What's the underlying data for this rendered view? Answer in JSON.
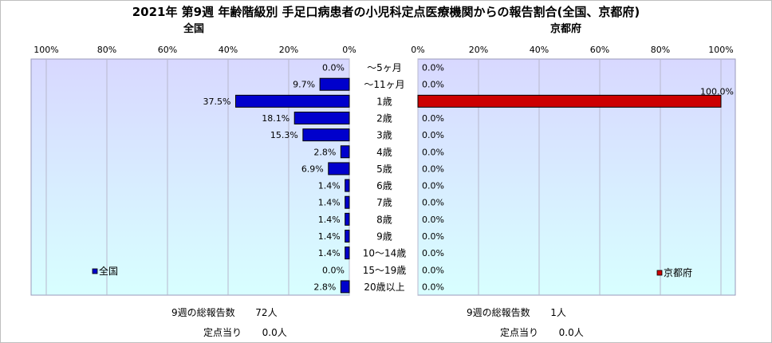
{
  "title": "2021年 第9週 年齢階級別 手足口病患者の小児科定点医療機関からの報告割合(全国、京都府)",
  "chart_data": [
    {
      "type": "bar",
      "orientation": "horizontal",
      "direction": "right-to-left",
      "title": "全国",
      "categories": [
        "～5ヶ月",
        "～11ヶ月",
        "1歳",
        "2歳",
        "3歳",
        "4歳",
        "5歳",
        "6歳",
        "7歳",
        "8歳",
        "9歳",
        "10～14歳",
        "15～19歳",
        "20歳以上"
      ],
      "series": [
        {
          "name": "全国",
          "color": "#0000cc",
          "values": [
            0.0,
            9.7,
            37.5,
            18.1,
            15.3,
            2.8,
            6.9,
            1.4,
            1.4,
            1.4,
            1.4,
            1.4,
            0.0,
            2.8
          ],
          "labels": [
            "0.0%",
            "9.7%",
            "37.5%",
            "18.1%",
            "15.3%",
            "2.8%",
            "6.9%",
            "1.4%",
            "1.4%",
            "1.4%",
            "1.4%",
            "1.4%",
            "0.0%",
            "2.8%"
          ]
        }
      ],
      "xlim": [
        0,
        100
      ],
      "xticks": [
        "100%",
        "80%",
        "60%",
        "40%",
        "20%",
        "0%"
      ],
      "grid": true,
      "legend": "bottom-left"
    },
    {
      "type": "bar",
      "orientation": "horizontal",
      "direction": "left-to-right",
      "title": "京都府",
      "categories": [
        "～5ヶ月",
        "～11ヶ月",
        "1歳",
        "2歳",
        "3歳",
        "4歳",
        "5歳",
        "6歳",
        "7歳",
        "8歳",
        "9歳",
        "10～14歳",
        "15～19歳",
        "20歳以上"
      ],
      "series": [
        {
          "name": "京都府",
          "color": "#cc0000",
          "values": [
            0.0,
            0.0,
            100.0,
            0.0,
            0.0,
            0.0,
            0.0,
            0.0,
            0.0,
            0.0,
            0.0,
            0.0,
            0.0,
            0.0
          ],
          "labels": [
            "0.0%",
            "0.0%",
            "100.0%",
            "0.0%",
            "0.0%",
            "0.0%",
            "0.0%",
            "0.0%",
            "0.0%",
            "0.0%",
            "0.0%",
            "0.0%",
            "0.0%",
            "0.0%"
          ]
        }
      ],
      "xlim": [
        0,
        100
      ],
      "xticks": [
        "0%",
        "20%",
        "40%",
        "60%",
        "80%",
        "100%"
      ],
      "grid": true,
      "legend": "bottom-right"
    }
  ],
  "footer": {
    "national_total_label": "9週の総報告数",
    "national_total_value": "72人",
    "national_per_site_label": "定点当り",
    "national_per_site_value": "0.0人",
    "kyoto_total_label": "9週の総報告数",
    "kyoto_total_value": "1人",
    "kyoto_per_site_label": "定点当り",
    "kyoto_per_site_value": "0.0人"
  },
  "colors": {
    "plot_bg_top": "#d8d8ff",
    "plot_bg_bottom": "#d8ffff",
    "national_bar": "#0000cc",
    "kyoto_bar": "#cc0000"
  }
}
